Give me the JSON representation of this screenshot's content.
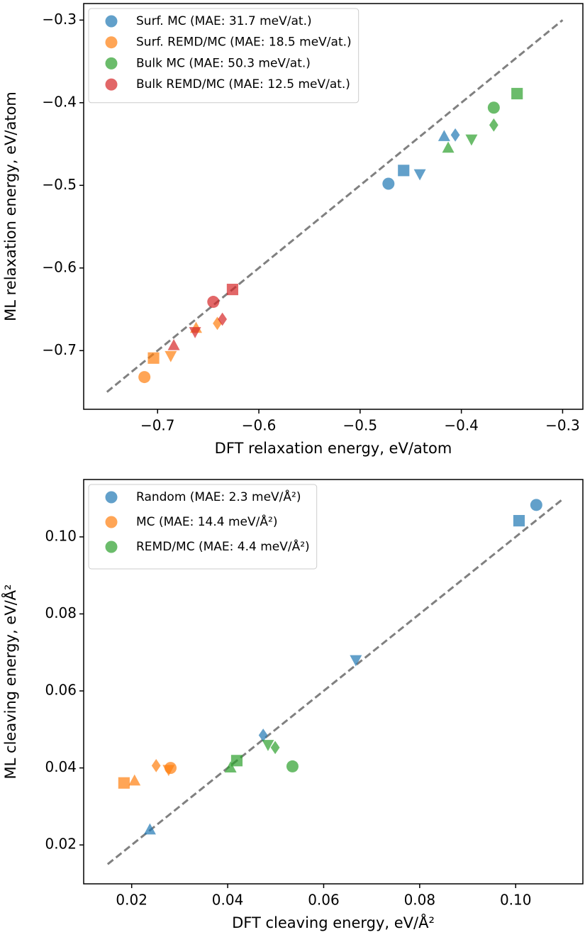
{
  "chart_data": [
    {
      "type": "scatter",
      "x_label": "DFT relaxation energy, eV/atom",
      "y_label": "ML relaxation energy, eV/atom",
      "xlim": [
        -0.773,
        -0.28
      ],
      "ylim": [
        -0.771,
        -0.28
      ],
      "xticks": [
        {
          "value": -0.7,
          "label": "−0.7"
        },
        {
          "value": -0.6,
          "label": "−0.6"
        },
        {
          "value": -0.5,
          "label": "−0.5"
        },
        {
          "value": -0.4,
          "label": "−0.4"
        },
        {
          "value": -0.3,
          "label": "−0.3"
        }
      ],
      "yticks": [
        {
          "value": -0.7,
          "label": "−0.7"
        },
        {
          "value": -0.6,
          "label": "−0.6"
        },
        {
          "value": -0.5,
          "label": "−0.5"
        },
        {
          "value": -0.4,
          "label": "−0.4"
        },
        {
          "value": -0.3,
          "label": "−0.3"
        }
      ],
      "reference_line": {
        "x": [
          -0.75,
          -0.3
        ],
        "y": [
          -0.75,
          -0.3
        ]
      },
      "legend": "upper left",
      "alpha": 0.7,
      "series": [
        {
          "name": "Surf. MC (MAE: 31.7 meV/at.)",
          "color": "#1f77b4",
          "markers": [
            "circle",
            "square",
            "triangle-down",
            "triangle-up",
            "diamond"
          ],
          "x": [
            -0.472,
            -0.457,
            -0.441,
            -0.417,
            -0.406
          ],
          "values": [
            -0.498,
            -0.482,
            -0.486,
            -0.441,
            -0.439
          ]
        },
        {
          "name": "Surf. REMD/MC (MAE: 18.5 meV/at.)",
          "color": "#ff7f0e",
          "markers": [
            "circle",
            "square",
            "triangle-down",
            "triangle-up",
            "diamond"
          ],
          "x": [
            -0.713,
            -0.704,
            -0.687,
            -0.662,
            -0.641
          ],
          "values": [
            -0.732,
            -0.709,
            -0.706,
            -0.673,
            -0.667
          ]
        },
        {
          "name": "Bulk MC (MAE: 50.3 meV/at.)",
          "color": "#2ca02c",
          "markers": [
            "circle",
            "square",
            "triangle-up",
            "triangle-down",
            "diamond"
          ],
          "x": [
            -0.368,
            -0.345,
            -0.413,
            -0.39,
            -0.368
          ],
          "values": [
            -0.406,
            -0.389,
            -0.455,
            -0.444,
            -0.427
          ]
        },
        {
          "name": "Bulk REMD/MC (MAE: 12.5 meV/at.)",
          "color": "#d62728",
          "markers": [
            "circle",
            "square",
            "triangle-up",
            "triangle-down",
            "diamond"
          ],
          "x": [
            -0.645,
            -0.626,
            -0.684,
            -0.663,
            -0.636
          ],
          "values": [
            -0.641,
            -0.626,
            -0.694,
            -0.677,
            -0.662
          ]
        }
      ]
    },
    {
      "type": "scatter",
      "x_label": "DFT cleaving energy, eV/Å²",
      "y_label": "ML cleaving energy, eV/Å²",
      "xlim": [
        0.01,
        0.114
      ],
      "ylim": [
        0.0099,
        0.1149
      ],
      "xticks": [
        0.02,
        0.04,
        0.06,
        0.08,
        {
          "value": 0.1,
          "label": "0.10"
        }
      ],
      "yticks": [
        0.02,
        0.04,
        0.06,
        0.08,
        {
          "value": 0.1,
          "label": "0.10"
        }
      ],
      "reference_line": {
        "x": [
          0.015,
          0.11
        ],
        "y": [
          0.015,
          0.11
        ]
      },
      "legend": "upper left",
      "alpha": 0.7,
      "series": [
        {
          "name": "Random (MAE: 2.3 meV/Å²)",
          "color": "#1f77b4",
          "markers": [
            "circle",
            "square",
            "triangle-down",
            "diamond",
            "triangle-up"
          ],
          "x": [
            0.1043,
            0.1007,
            0.0667,
            0.0474,
            0.0238
          ],
          "values": [
            0.1083,
            0.1042,
            0.0681,
            0.0485,
            0.0239
          ]
        },
        {
          "name": "MC (MAE: 14.4 meV/Å²)",
          "color": "#ff7f0e",
          "markers": [
            "square",
            "triangle-up",
            "diamond",
            "circle",
            "triangle-down"
          ],
          "x": [
            0.0184,
            0.0206,
            0.0251,
            0.0281,
            0.0277
          ],
          "values": [
            0.0361,
            0.0366,
            0.0406,
            0.04,
            0.0396
          ]
        },
        {
          "name": "REMD/MC (MAE: 4.4 meV/Å²)",
          "color": "#2ca02c",
          "markers": [
            "circle",
            "square",
            "triangle-up",
            "triangle-down",
            "diamond"
          ],
          "x": [
            0.0535,
            0.0419,
            0.0406,
            0.0484,
            0.0499
          ],
          "values": [
            0.0404,
            0.0419,
            0.04,
            0.0461,
            0.0453
          ]
        }
      ]
    }
  ]
}
